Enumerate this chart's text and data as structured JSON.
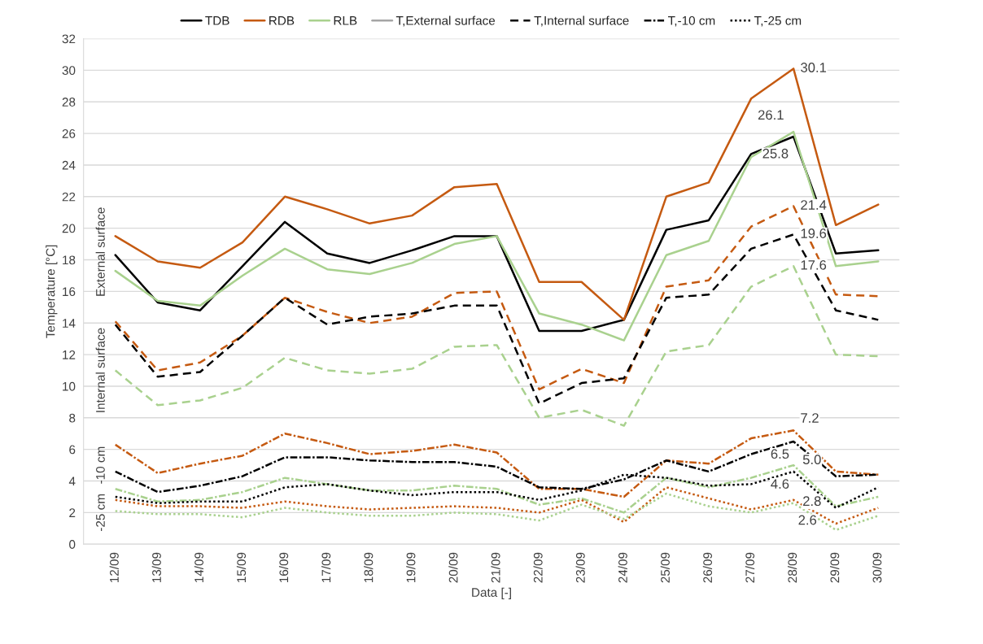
{
  "chart_data": {
    "type": "line",
    "xlabel": "Data [-]",
    "ylabel": "Temperature [°C]",
    "categories": [
      "12/09",
      "13/09",
      "14/09",
      "15/09",
      "16/09",
      "17/09",
      "18/09",
      "19/09",
      "20/09",
      "21/09",
      "22/09",
      "23/09",
      "24/09",
      "25/09",
      "26/09",
      "27/09",
      "28/09",
      "29/09",
      "30/09"
    ],
    "ylim": [
      0,
      32
    ],
    "yticks": [
      0,
      2,
      4,
      6,
      8,
      10,
      12,
      14,
      16,
      18,
      20,
      22,
      24,
      26,
      28,
      30,
      32
    ],
    "grid": "y",
    "legend": "top",
    "marker": "none",
    "series": [
      {
        "name": "TDB",
        "color": "#000000",
        "line_style": "solid",
        "values": [
          18.3,
          15.3,
          14.8,
          17.6,
          20.4,
          18.4,
          17.8,
          18.6,
          19.5,
          19.5,
          13.5,
          13.5,
          14.2,
          19.9,
          20.5,
          24.7,
          25.8,
          18.4,
          18.6
        ]
      },
      {
        "name": "RDB",
        "color": "#c55a11",
        "line_style": "solid",
        "values": [
          19.5,
          17.9,
          17.5,
          19.1,
          22.0,
          21.2,
          20.3,
          20.8,
          22.6,
          22.8,
          16.6,
          16.6,
          14.2,
          22.0,
          22.9,
          28.2,
          30.1,
          20.2,
          21.5
        ]
      },
      {
        "name": "RLB",
        "color": "#a9d18e",
        "line_style": "solid",
        "values": [
          17.3,
          15.4,
          15.1,
          17.0,
          18.7,
          17.4,
          17.1,
          17.8,
          19.0,
          19.5,
          14.6,
          13.9,
          12.9,
          18.3,
          19.2,
          24.5,
          26.1,
          17.6,
          17.9
        ]
      },
      {
        "name": "T,External surface",
        "color": "#a5a5a5",
        "line_style": "solid",
        "values": [
          null,
          null,
          null,
          null,
          null,
          null,
          null,
          null,
          null,
          null,
          null,
          null,
          null,
          null,
          null,
          null,
          null,
          null,
          null
        ]
      },
      {
        "name": "T,Internal surface",
        "color": "#000000",
        "line_style": "dashed",
        "values": [
          null,
          null,
          null,
          null,
          null,
          null,
          null,
          null,
          null,
          null,
          null,
          null,
          null,
          null,
          null,
          null,
          null,
          null,
          null
        ]
      },
      {
        "name": "T,-10 cm",
        "color": "#000000",
        "line_style": "dashdot",
        "values": [
          null,
          null,
          null,
          null,
          null,
          null,
          null,
          null,
          null,
          null,
          null,
          null,
          null,
          null,
          null,
          null,
          null,
          null,
          null
        ]
      },
      {
        "name": "T,-25 cm",
        "color": "#000000",
        "line_style": "dotted",
        "values": [
          null,
          null,
          null,
          null,
          null,
          null,
          null,
          null,
          null,
          null,
          null,
          null,
          null,
          null,
          null,
          null,
          null,
          null,
          null
        ]
      },
      {
        "color": "#c55a11",
        "line_style": "dashed",
        "values": [
          14.1,
          11.0,
          11.5,
          13.2,
          15.6,
          14.7,
          14.0,
          14.4,
          15.9,
          16.0,
          9.8,
          11.1,
          10.2,
          16.3,
          16.7,
          20.1,
          21.4,
          15.8,
          15.7
        ]
      },
      {
        "color": "#000000",
        "line_style": "dashed",
        "values": [
          13.9,
          10.6,
          10.9,
          13.2,
          15.6,
          13.9,
          14.4,
          14.6,
          15.1,
          15.1,
          8.9,
          10.2,
          10.5,
          15.6,
          15.8,
          18.7,
          19.6,
          14.8,
          14.2
        ]
      },
      {
        "color": "#a9d18e",
        "line_style": "dashed",
        "values": [
          11.0,
          8.8,
          9.1,
          9.9,
          11.8,
          11.0,
          10.8,
          11.1,
          12.5,
          12.6,
          8.0,
          8.5,
          7.5,
          12.2,
          12.6,
          16.3,
          17.6,
          12.0,
          11.9
        ]
      },
      {
        "color": "#c55a11",
        "line_style": "dashdot",
        "values": [
          6.3,
          4.5,
          5.1,
          5.6,
          7.0,
          6.4,
          5.7,
          5.9,
          6.3,
          5.8,
          3.5,
          3.5,
          3.0,
          5.3,
          5.1,
          6.7,
          7.2,
          4.6,
          4.4
        ]
      },
      {
        "color": "#000000",
        "line_style": "dashdot",
        "values": [
          4.6,
          3.3,
          3.7,
          4.3,
          5.5,
          5.5,
          5.3,
          5.2,
          5.2,
          4.9,
          3.6,
          3.5,
          4.1,
          5.3,
          4.6,
          5.7,
          6.5,
          4.3,
          4.4
        ]
      },
      {
        "color": "#a9d18e",
        "line_style": "dashdot",
        "values": [
          3.5,
          2.7,
          2.8,
          3.3,
          4.2,
          3.8,
          3.4,
          3.4,
          3.7,
          3.5,
          2.5,
          2.9,
          2.0,
          4.2,
          3.6,
          4.2,
          5.0,
          2.4,
          3.0
        ]
      },
      {
        "color": "#000000",
        "line_style": "dotted",
        "values": [
          3.0,
          2.6,
          2.7,
          2.7,
          3.6,
          3.8,
          3.4,
          3.1,
          3.3,
          3.3,
          2.8,
          3.4,
          4.4,
          4.2,
          3.7,
          3.8,
          4.6,
          2.3,
          3.6
        ]
      },
      {
        "color": "#c55a11",
        "line_style": "dotted",
        "values": [
          2.8,
          2.4,
          2.4,
          2.3,
          2.7,
          2.4,
          2.2,
          2.3,
          2.4,
          2.3,
          2.0,
          2.8,
          1.4,
          3.6,
          2.9,
          2.2,
          2.8,
          1.3,
          2.3
        ]
      },
      {
        "color": "#a9d18e",
        "line_style": "dotted",
        "values": [
          2.1,
          1.9,
          1.9,
          1.7,
          2.3,
          2.0,
          1.8,
          1.8,
          2.0,
          1.9,
          1.5,
          2.5,
          1.6,
          3.2,
          2.4,
          2.0,
          2.6,
          0.9,
          1.8
        ]
      }
    ],
    "annotations": [
      "External surface",
      "Internal surface",
      "-10 cm",
      "-25 cm",
      {
        "text": "30.1",
        "x": "28/09",
        "y": 30.1
      },
      {
        "text": "26.1",
        "x": "28/09",
        "y": 26.1
      },
      {
        "text": "25.8",
        "x": "28/09",
        "y": 25.8
      },
      {
        "text": "21.4",
        "x": "28/09",
        "y": 21.4
      },
      {
        "text": "19.6",
        "x": "28/09",
        "y": 19.6
      },
      {
        "text": "17.6",
        "x": "28/09",
        "y": 17.6
      },
      {
        "text": "7.2",
        "x": "28/09",
        "y": 7.2
      },
      {
        "text": "6.5",
        "x": "28/09",
        "y": 6.5
      },
      {
        "text": "5.0",
        "x": "28/09",
        "y": 5.0
      },
      {
        "text": "4.6",
        "x": "28/09",
        "y": 4.6
      },
      {
        "text": "2.8",
        "x": "28/09",
        "y": 2.8
      },
      {
        "text": "2.6",
        "x": "28/09",
        "y": 2.6
      }
    ]
  }
}
